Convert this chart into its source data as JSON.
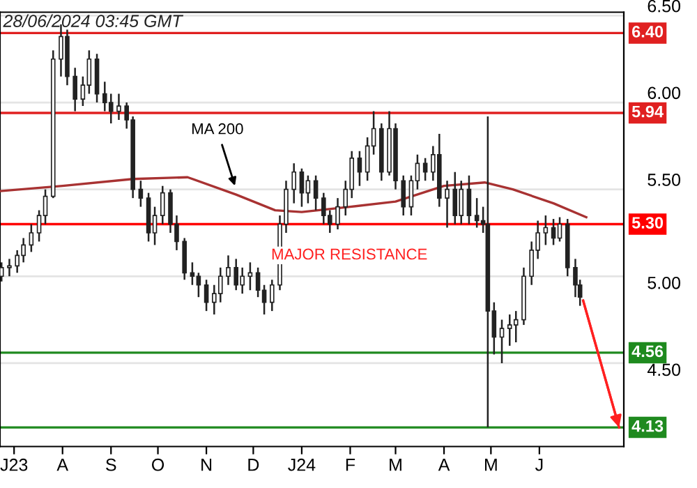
{
  "chart_data": {
    "type": "candlestick",
    "annotations": [
      "28/06/2024 03:45 GMT",
      {
        "text": "MA 200",
        "x": "2023-11-20",
        "y": 5.5
      },
      "MAJOR RESISTANCE"
    ],
    "xlim": [
      "2023-06-22",
      "2024-07-25"
    ],
    "xticks": [
      {
        "value": "2023-07-01",
        "label": "J23"
      },
      {
        "value": "2023-08-01",
        "label": "A"
      },
      {
        "value": "2023-09-01",
        "label": "S"
      },
      {
        "value": "2023-10-01",
        "label": "O"
      },
      {
        "value": "2023-11-01",
        "label": "N"
      },
      {
        "value": "2023-12-01",
        "label": "D"
      },
      {
        "value": "2024-01-01",
        "label": "J24"
      },
      {
        "value": "2024-02-01",
        "label": "F"
      },
      {
        "value": "2024-03-01",
        "label": "M"
      },
      {
        "value": "2024-04-01",
        "label": "A"
      },
      {
        "value": "2024-05-01",
        "label": "M"
      },
      {
        "value": "2024-06-01",
        "label": "J"
      }
    ],
    "ylim": [
      4.02,
      6.52
    ],
    "yticks": [
      {
        "value": 4.5,
        "label": "4.50"
      },
      {
        "value": 5.0,
        "label": "5.00"
      },
      {
        "value": 5.5,
        "label": "5.50"
      },
      {
        "value": 6.0,
        "label": "6.00"
      },
      {
        "value": 6.5,
        "label": "6.50"
      }
    ],
    "grid": "y",
    "ref_lines": [
      {
        "axis": "y",
        "value": 6.4,
        "label": "6.40",
        "color": "#e02020"
      },
      {
        "axis": "y",
        "value": 5.94,
        "label": "5.94",
        "color": "#e02020"
      },
      {
        "axis": "y",
        "value": 5.3,
        "label": "5.30",
        "color": "#ff0000"
      },
      {
        "axis": "y",
        "value": 4.56,
        "label": "4.56",
        "color": "#1f8a1f"
      },
      {
        "axis": "y",
        "value": 4.13,
        "label": "4.13",
        "color": "#1f8a1f"
      }
    ],
    "series": [
      {
        "color": "#222222",
        "x": [
          "2023-06-23",
          "2023-06-28",
          "2023-07-03",
          "2023-07-07",
          "2023-07-12",
          "2023-07-17",
          "2023-07-21",
          "2023-07-26",
          "2023-07-31",
          "2023-08-04",
          "2023-08-09",
          "2023-08-14",
          "2023-08-18",
          "2023-08-23",
          "2023-08-28",
          "2023-09-01",
          "2023-09-06",
          "2023-09-11",
          "2023-09-15",
          "2023-09-20",
          "2023-09-25",
          "2023-09-29",
          "2023-10-04",
          "2023-10-09",
          "2023-10-13",
          "2023-10-18",
          "2023-10-23",
          "2023-10-27",
          "2023-11-01",
          "2023-11-06",
          "2023-11-10",
          "2023-11-15",
          "2023-11-20",
          "2023-11-24",
          "2023-11-29",
          "2023-12-04",
          "2023-12-08",
          "2023-12-13",
          "2023-12-18",
          "2023-12-22",
          "2023-12-27",
          "2024-01-01",
          "2024-01-05",
          "2024-01-10",
          "2024-01-15",
          "2024-01-19",
          "2024-01-24",
          "2024-01-29",
          "2024-02-02",
          "2024-02-07",
          "2024-02-12",
          "2024-02-16",
          "2024-02-21",
          "2024-02-26",
          "2024-03-01",
          "2024-03-06",
          "2024-03-11",
          "2024-03-15",
          "2024-03-20",
          "2024-03-25",
          "2024-03-29",
          "2024-04-03",
          "2024-04-08",
          "2024-04-12",
          "2024-04-17",
          "2024-04-22",
          "2024-04-26",
          "2024-04-29",
          "2024-05-03",
          "2024-05-08",
          "2024-05-13",
          "2024-05-17",
          "2024-05-22",
          "2024-05-27",
          "2024-05-31",
          "2024-06-05",
          "2024-06-10",
          "2024-06-14",
          "2024-06-19",
          "2024-06-24",
          "2024-06-27"
        ],
        "ohlc": [
          [
            5.0,
            5.08,
            4.97,
            5.05
          ],
          [
            5.05,
            5.1,
            5.0,
            5.06
          ],
          [
            5.06,
            5.15,
            5.02,
            5.12
          ],
          [
            5.12,
            5.22,
            5.08,
            5.18
          ],
          [
            5.18,
            5.3,
            5.14,
            5.25
          ],
          [
            5.25,
            5.38,
            5.2,
            5.35
          ],
          [
            5.35,
            5.5,
            5.3,
            5.46
          ],
          [
            5.46,
            6.3,
            5.45,
            6.25
          ],
          [
            6.25,
            6.45,
            6.15,
            6.38
          ],
          [
            6.38,
            6.42,
            6.1,
            6.15
          ],
          [
            6.15,
            6.2,
            5.95,
            6.02
          ],
          [
            6.02,
            6.15,
            5.98,
            6.1
          ],
          [
            6.1,
            6.3,
            6.05,
            6.25
          ],
          [
            6.25,
            6.28,
            6.0,
            6.05
          ],
          [
            6.05,
            6.12,
            5.95,
            6.0
          ],
          [
            6.0,
            6.05,
            5.88,
            5.95
          ],
          [
            5.95,
            6.05,
            5.9,
            5.98
          ],
          [
            5.98,
            6.0,
            5.85,
            5.9
          ],
          [
            5.9,
            5.92,
            5.45,
            5.5
          ],
          [
            5.5,
            5.55,
            5.4,
            5.45
          ],
          [
            5.45,
            5.48,
            5.2,
            5.25
          ],
          [
            5.25,
            5.4,
            5.18,
            5.35
          ],
          [
            5.35,
            5.52,
            5.3,
            5.48
          ],
          [
            5.48,
            5.5,
            5.25,
            5.3
          ],
          [
            5.3,
            5.35,
            5.15,
            5.2
          ],
          [
            5.2,
            5.22,
            4.98,
            5.02
          ],
          [
            5.02,
            5.08,
            4.95,
            5.0
          ],
          [
            5.0,
            5.02,
            4.88,
            4.95
          ],
          [
            4.95,
            4.98,
            4.8,
            4.85
          ],
          [
            4.85,
            4.95,
            4.78,
            4.9
          ],
          [
            4.9,
            5.05,
            4.85,
            5.0
          ],
          [
            5.0,
            5.12,
            4.95,
            5.05
          ],
          [
            5.05,
            5.1,
            4.92,
            4.95
          ],
          [
            4.95,
            5.05,
            4.9,
            5.0
          ],
          [
            5.0,
            5.08,
            4.92,
            5.02
          ],
          [
            5.02,
            5.05,
            4.88,
            4.92
          ],
          [
            4.92,
            4.95,
            4.78,
            4.85
          ],
          [
            4.85,
            4.98,
            4.8,
            4.95
          ],
          [
            4.95,
            5.35,
            4.92,
            5.3
          ],
          [
            5.3,
            5.55,
            5.25,
            5.5
          ],
          [
            5.5,
            5.65,
            5.42,
            5.6
          ],
          [
            5.6,
            5.62,
            5.4,
            5.48
          ],
          [
            5.48,
            5.58,
            5.42,
            5.55
          ],
          [
            5.55,
            5.58,
            5.38,
            5.45
          ],
          [
            5.45,
            5.48,
            5.3,
            5.35
          ],
          [
            5.35,
            5.38,
            5.25,
            5.3
          ],
          [
            5.3,
            5.45,
            5.27,
            5.4
          ],
          [
            5.4,
            5.55,
            5.35,
            5.5
          ],
          [
            5.5,
            5.72,
            5.45,
            5.68
          ],
          [
            5.68,
            5.72,
            5.52,
            5.6
          ],
          [
            5.6,
            5.8,
            5.55,
            5.75
          ],
          [
            5.75,
            5.95,
            5.7,
            5.85
          ],
          [
            5.85,
            5.88,
            5.55,
            5.6
          ],
          [
            5.6,
            5.95,
            5.58,
            5.85
          ],
          [
            5.85,
            5.88,
            5.5,
            5.55
          ],
          [
            5.55,
            5.58,
            5.35,
            5.4
          ],
          [
            5.4,
            5.58,
            5.35,
            5.55
          ],
          [
            5.55,
            5.7,
            5.5,
            5.65
          ],
          [
            5.65,
            5.68,
            5.55,
            5.6
          ],
          [
            5.6,
            5.75,
            5.55,
            5.7
          ],
          [
            5.7,
            5.82,
            5.4,
            5.45
          ],
          [
            5.45,
            5.55,
            5.28,
            5.5
          ],
          [
            5.5,
            5.6,
            5.3,
            5.35
          ],
          [
            5.35,
            5.55,
            5.3,
            5.5
          ],
          [
            5.5,
            5.58,
            5.3,
            5.35
          ],
          [
            5.35,
            5.45,
            5.28,
            5.32
          ],
          [
            5.32,
            5.4,
            5.25,
            5.3
          ],
          [
            5.3,
            5.92,
            4.13,
            4.8
          ],
          [
            4.8,
            4.85,
            4.55,
            4.65
          ],
          [
            4.65,
            4.75,
            4.5,
            4.7
          ],
          [
            4.7,
            4.78,
            4.6,
            4.72
          ],
          [
            4.72,
            4.8,
            4.62,
            4.75
          ],
          [
            4.75,
            5.05,
            4.72,
            5.0
          ],
          [
            5.0,
            5.2,
            4.95,
            5.15
          ],
          [
            5.15,
            5.32,
            5.1,
            5.25
          ],
          [
            5.25,
            5.35,
            5.18,
            5.28
          ],
          [
            5.28,
            5.33,
            5.18,
            5.22
          ],
          [
            5.22,
            5.34,
            5.2,
            5.3
          ],
          [
            5.3,
            5.33,
            5.0,
            5.05
          ],
          [
            5.05,
            5.1,
            4.88,
            4.95
          ],
          [
            4.95,
            4.98,
            4.83,
            4.88
          ]
        ]
      },
      {
        "type": "line",
        "color": "#a83232",
        "x": [
          "2023-06-22",
          "2023-08-01",
          "2023-09-15",
          "2023-10-20",
          "2023-11-20",
          "2023-12-15",
          "2024-01-01",
          "2024-02-01",
          "2024-03-01",
          "2024-04-01",
          "2024-04-27",
          "2024-05-15",
          "2024-06-10",
          "2024-07-01"
        ],
        "values": [
          5.49,
          5.52,
          5.56,
          5.57,
          5.47,
          5.38,
          5.37,
          5.4,
          5.43,
          5.52,
          5.54,
          5.5,
          5.42,
          5.34
        ]
      },
      {
        "type": "line",
        "color": "#ff2020",
        "x": [
          "2024-06-29",
          "2024-07-22"
        ],
        "values": [
          4.86,
          4.13
        ]
      }
    ]
  }
}
